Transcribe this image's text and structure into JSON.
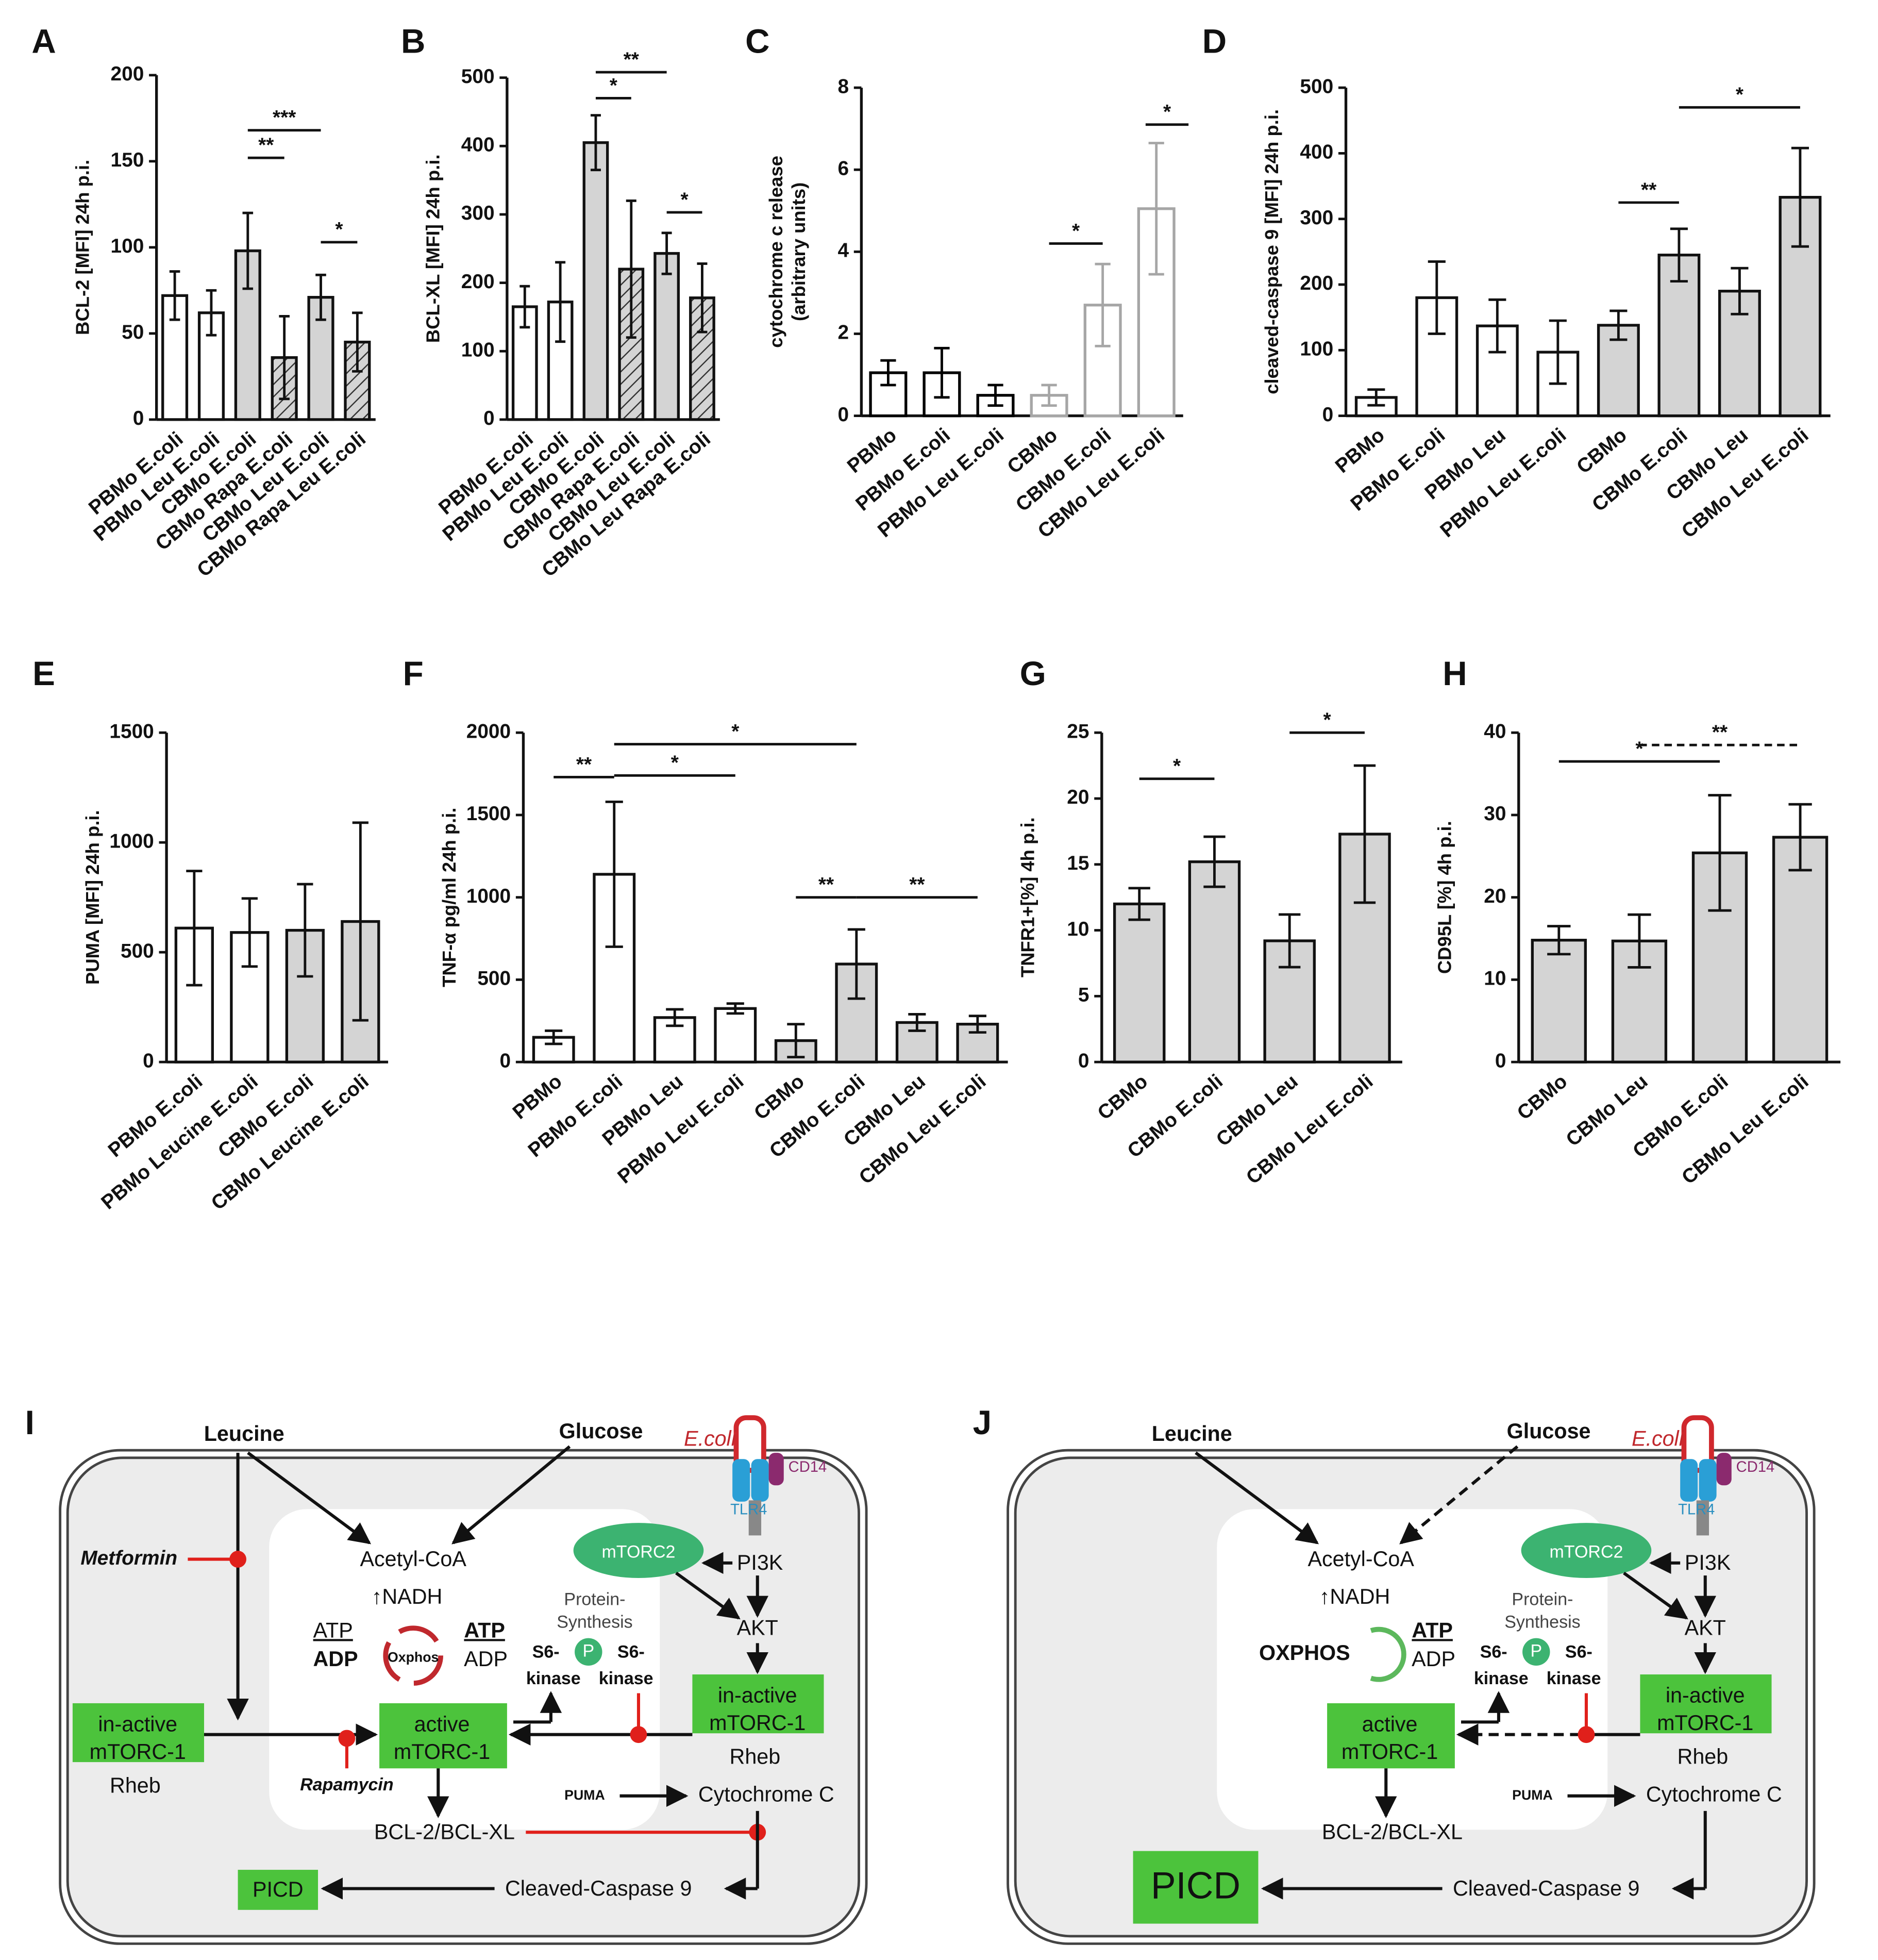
{
  "chart_data": [
    {
      "type": "bar",
      "label": "A",
      "ylabel": "BCL-2 [MFI] 24h p.i.",
      "categories": [
        "PBMo E.coli",
        "PBMo Leu E.coli",
        "CBMo E.coli",
        "CBMo Rapa E.coli",
        "CBMo Leu E.coli",
        "CBMo Rapa Leu E.coli"
      ],
      "values": [
        72,
        62,
        98,
        36,
        71,
        45
      ],
      "errors": [
        14,
        13,
        22,
        24,
        13,
        17
      ],
      "colors": [
        "#ffffff",
        "#ffffff",
        "#d4d4d4",
        "#d4d4d4",
        "#d4d4d4",
        "#d4d4d4"
      ],
      "patterns": [
        "solid",
        "solid",
        "solid",
        "hatched",
        "solid",
        "hatched"
      ],
      "ylim": [
        0,
        200
      ],
      "yticks": [
        0,
        50,
        100,
        150,
        200
      ],
      "annotations": [
        {
          "text": "***",
          "from": 2,
          "to": 4,
          "y": 168
        },
        {
          "text": "**",
          "from": 2,
          "to": 3,
          "y": 152
        },
        {
          "text": "*",
          "from": 4,
          "to": 5,
          "y": 103
        }
      ]
    },
    {
      "type": "bar",
      "label": "B",
      "ylabel": "BCL-XL [MFI] 24h p.i.",
      "categories": [
        "PBMo E.coli",
        "PBMo Leu E.coli",
        "CBMo E.coli",
        "CBMo Rapa E.coli",
        "CBMo Leu E.coli",
        "CBMo Leu Rapa E.coli"
      ],
      "values": [
        165,
        172,
        405,
        220,
        243,
        178
      ],
      "errors": [
        30,
        58,
        40,
        100,
        30,
        50
      ],
      "colors": [
        "#ffffff",
        "#ffffff",
        "#d4d4d4",
        "#d4d4d4",
        "#d4d4d4",
        "#d4d4d4"
      ],
      "patterns": [
        "solid",
        "solid",
        "solid",
        "hatched",
        "solid",
        "hatched"
      ],
      "ylim": [
        0,
        500
      ],
      "yticks": [
        0,
        100,
        200,
        300,
        400,
        500
      ],
      "annotations": [
        {
          "text": "**",
          "from": 2,
          "to": 4,
          "y": 508
        },
        {
          "text": "*",
          "from": 2,
          "to": 3,
          "y": 470
        },
        {
          "text": "*",
          "from": 4,
          "to": 5,
          "y": 303
        }
      ]
    },
    {
      "type": "bar",
      "label": "C",
      "ylabel": [
        "cytochrome c release",
        "(arbitrary units)"
      ],
      "categories": [
        "PBMo",
        "PBMo E.coli",
        "PBMo Leu E.coli",
        "CBMo",
        "CBMo E.coli",
        "CBMo Leu E.coli"
      ],
      "values": [
        1.05,
        1.05,
        0.5,
        0.5,
        2.7,
        5.05
      ],
      "errors": [
        0.3,
        0.6,
        0.25,
        0.25,
        1.0,
        1.6
      ],
      "colors": [
        "#ffffff",
        "#ffffff",
        "#ffffff",
        "#ffffff",
        "#ffffff",
        "#ffffff"
      ],
      "edge_colors": [
        "#000000",
        "#000000",
        "#000000",
        "#a6a6a6",
        "#a6a6a6",
        "#a6a6a6"
      ],
      "ylim": [
        0,
        8
      ],
      "yticks": [
        0,
        2,
        4,
        6,
        8
      ],
      "annotations": [
        {
          "text": "*",
          "from": 3,
          "to": 4,
          "y": 4.2
        },
        {
          "text": "*",
          "from": 4.8,
          "to": 5.6,
          "y": 7.1
        }
      ]
    },
    {
      "type": "bar",
      "label": "D",
      "ylabel": "cleaved-caspase 9 [MFI] 24h p.i.",
      "categories": [
        "PBMo",
        "PBMo E.coli",
        "PBMo Leu",
        "PBMo Leu E.coli",
        "CBMo",
        "CBMo E.coli",
        "CBMo Leu",
        "CBMo Leu E.coli"
      ],
      "values": [
        28,
        180,
        137,
        97,
        138,
        245,
        190,
        333
      ],
      "errors": [
        12,
        55,
        40,
        48,
        22,
        40,
        35,
        75
      ],
      "colors": [
        "#ffffff",
        "#ffffff",
        "#ffffff",
        "#ffffff",
        "#d4d4d4",
        "#d4d4d4",
        "#d4d4d4",
        "#d4d4d4"
      ],
      "ylim": [
        0,
        500
      ],
      "yticks": [
        0,
        100,
        200,
        300,
        400,
        500
      ],
      "annotations": [
        {
          "text": "**",
          "from": 4,
          "to": 5,
          "y": 325
        },
        {
          "text": "*",
          "from": 5,
          "to": 7,
          "y": 470
        }
      ]
    },
    {
      "type": "bar",
      "label": "E",
      "ylabel": "PUMA [MFI] 24h p.i.",
      "categories": [
        "PBMo E.coli",
        "PBMo Leucine E.coli",
        "CBMo E.coli",
        "CBMo Leucine E.coli"
      ],
      "values": [
        610,
        590,
        600,
        640
      ],
      "errors": [
        260,
        155,
        210,
        450
      ],
      "colors": [
        "#ffffff",
        "#ffffff",
        "#d4d4d4",
        "#d4d4d4"
      ],
      "ylim": [
        0,
        1500
      ],
      "yticks": [
        0,
        500,
        1000,
        1500
      ],
      "annotations": []
    },
    {
      "type": "bar",
      "label": "F",
      "ylabel": "TNF-α pg/ml 24h p.i.",
      "categories": [
        "PBMo",
        "PBMo E.coli",
        "PBMo Leu",
        "PBMo Leu E.coli",
        "CBMo",
        "CBMo E.coli",
        "CBMo Leu",
        "CBMo Leu E.coli"
      ],
      "values": [
        150,
        1140,
        270,
        325,
        130,
        595,
        240,
        230
      ],
      "errors": [
        40,
        440,
        50,
        30,
        100,
        210,
        50,
        50
      ],
      "colors": [
        "#ffffff",
        "#ffffff",
        "#ffffff",
        "#ffffff",
        "#d4d4d4",
        "#d4d4d4",
        "#d4d4d4",
        "#d4d4d4"
      ],
      "ylim": [
        0,
        2000
      ],
      "yticks": [
        0,
        500,
        1000,
        1500,
        2000
      ],
      "annotations": [
        {
          "text": "**",
          "from": 0,
          "to": 1,
          "y": 1730
        },
        {
          "text": "*",
          "from": 1,
          "to": 3,
          "y": 1740
        },
        {
          "text": "*",
          "from": 1,
          "to": 5,
          "y": 1930
        },
        {
          "text": "**",
          "from": 4,
          "to": 5,
          "y": 1000
        },
        {
          "text": "**",
          "from": 5,
          "to": 7,
          "y": 1000
        }
      ]
    },
    {
      "type": "bar",
      "label": "G",
      "ylabel": "TNFR1+[%] 4h p.i.",
      "categories": [
        "CBMo",
        "CBMo E.coli",
        "CBMo Leu",
        "CBMo Leu E.coli"
      ],
      "values": [
        12,
        15.2,
        9.2,
        17.3
      ],
      "errors": [
        1.2,
        1.9,
        2,
        5.2
      ],
      "colors": [
        "#d4d4d4",
        "#d4d4d4",
        "#d4d4d4",
        "#d4d4d4"
      ],
      "ylim": [
        0,
        25
      ],
      "yticks": [
        0,
        5,
        10,
        15,
        20,
        25
      ],
      "annotations": [
        {
          "text": "*",
          "from": 0,
          "to": 1,
          "y": 21.5
        },
        {
          "text": "*",
          "from": 2,
          "to": 3,
          "y": 25
        }
      ]
    },
    {
      "type": "bar",
      "label": "H",
      "ylabel": "CD95L [%] 4h p.i.",
      "categories": [
        "CBMo",
        "CBMo Leu",
        "CBMo E.coli",
        "CBMo Leu E.coli"
      ],
      "values": [
        14.8,
        14.7,
        25.4,
        27.3
      ],
      "errors": [
        1.7,
        3.2,
        7,
        4
      ],
      "colors": [
        "#d4d4d4",
        "#d4d4d4",
        "#d4d4d4",
        "#d4d4d4"
      ],
      "ylim": [
        0,
        40
      ],
      "yticks": [
        0,
        10,
        20,
        30,
        40
      ],
      "annotations": [
        {
          "text": "*",
          "from": 0,
          "to": 2,
          "y": 36.5
        },
        {
          "text": "**",
          "from": 1,
          "to": 3,
          "y": 38.5,
          "dashed": true
        }
      ]
    }
  ],
  "diagrams": [
    {
      "label": "I",
      "leucine": "Leucine",
      "glucose": "Glucose",
      "ecoli": "E.coli",
      "cd14": "CD14",
      "tlr4": "TLR4",
      "metformin": "Metformin",
      "acetyl": "Acetyl-CoA",
      "nadh": "↑NADH",
      "mtorc2": "mTORC2",
      "pi3k": "PI3K",
      "protein1": "Protein-",
      "protein2": "Synthesis",
      "akt": "AKT",
      "atp_l": "ATP",
      "adp_l": "ADP",
      "oxphos": "Oxphos",
      "atp_r": "ATP",
      "adp_r": "ADP",
      "s6_a": "S6-",
      "p": "P",
      "s6_b": "S6-",
      "kinase_a": "kinase",
      "kinase_b": "kinase",
      "inactive_r1": "in-active",
      "inactive_r2": "mTORC-1",
      "rheb_r": "Rheb",
      "inactive_l1": "in-active",
      "inactive_l2": "mTORC-1",
      "rheb_l": "Rheb",
      "active1": "active",
      "active2": "mTORC-1",
      "rapamycin": "Rapamycin",
      "puma": "PUMA",
      "cytc": "Cytochrome C",
      "bcl": "BCL-2/BCL-XL",
      "picd": "PICD",
      "caspase": "Cleaved-Caspase 9"
    },
    {
      "label": "J",
      "leucine": "Leucine",
      "glucose": "Glucose",
      "ecoli": "E.coli",
      "cd14": "CD14",
      "tlr4": "TLR4",
      "acetyl": "Acetyl-CoA",
      "nadh": "↑NADH",
      "mtorc2": "mTORC2",
      "pi3k": "PI3K",
      "protein1": "Protein-",
      "protein2": "Synthesis",
      "akt": "AKT",
      "oxphos_big": "OXPHOS",
      "atp_r": "ATP",
      "adp_r": "ADP",
      "s6_a": "S6-",
      "p": "P",
      "s6_b": "S6-",
      "kinase_a": "kinase",
      "kinase_b": "kinase",
      "inactive_r1": "in-active",
      "inactive_r2": "mTORC-1",
      "rheb_r": "Rheb",
      "active1": "active",
      "active2": "mTORC-1",
      "puma": "PUMA",
      "cytc": "Cytochrome C",
      "bcl": "BCL-2/BCL-XL",
      "picd": "PICD",
      "caspase": "Cleaved-Caspase 9"
    }
  ]
}
